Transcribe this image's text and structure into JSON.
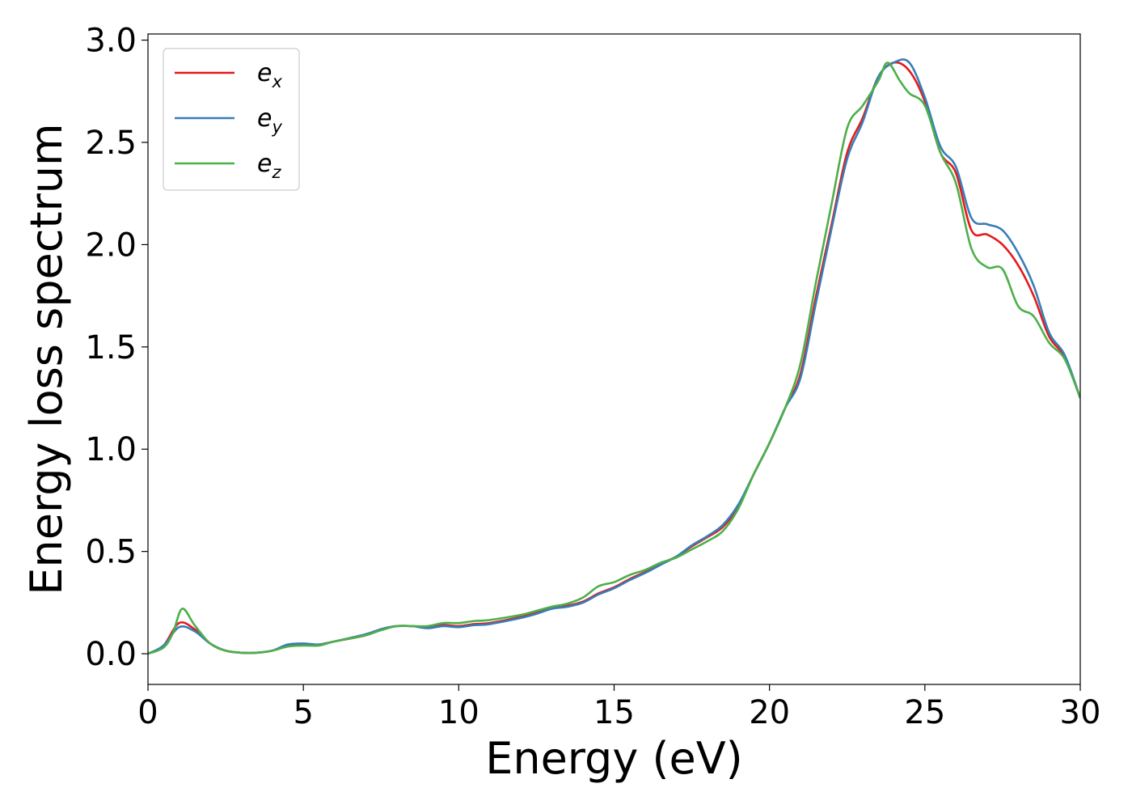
{
  "chart_data": {
    "type": "line",
    "xlabel": "Energy (eV)",
    "ylabel": "Energy loss spectrum",
    "xlim": [
      0,
      30
    ],
    "ylim": [
      -0.15,
      3.03
    ],
    "xticks": [
      0,
      5,
      10,
      15,
      20,
      25,
      30
    ],
    "xtick_labels": [
      "0",
      "5",
      "10",
      "15",
      "20",
      "25",
      "30"
    ],
    "yticks": [
      0.0,
      0.5,
      1.0,
      1.5,
      2.0,
      2.5,
      3.0
    ],
    "ytick_labels": [
      "0.0",
      "0.5",
      "1.0",
      "1.5",
      "2.0",
      "2.5",
      "3.0"
    ],
    "grid": false,
    "legend_position": "top-left",
    "series": [
      {
        "name": "e",
        "subscript": "x",
        "color": "#e41a1c",
        "points": [
          [
            0,
            0
          ],
          [
            0.5,
            0.04
          ],
          [
            1.0,
            0.15
          ],
          [
            1.5,
            0.12
          ],
          [
            2.0,
            0.05
          ],
          [
            2.5,
            0.015
          ],
          [
            3,
            0.005
          ],
          [
            3.5,
            0.005
          ],
          [
            4,
            0.015
          ],
          [
            4.5,
            0.04
          ],
          [
            5,
            0.045
          ],
          [
            5.5,
            0.045
          ],
          [
            6,
            0.06
          ],
          [
            7,
            0.09
          ],
          [
            7.5,
            0.12
          ],
          [
            8,
            0.135
          ],
          [
            8.5,
            0.135
          ],
          [
            9,
            0.13
          ],
          [
            9.5,
            0.14
          ],
          [
            10,
            0.135
          ],
          [
            10.5,
            0.145
          ],
          [
            11,
            0.15
          ],
          [
            12,
            0.18
          ],
          [
            12.5,
            0.2
          ],
          [
            13,
            0.225
          ],
          [
            13.5,
            0.235
          ],
          [
            14,
            0.255
          ],
          [
            14.5,
            0.295
          ],
          [
            15,
            0.325
          ],
          [
            15.5,
            0.365
          ],
          [
            16,
            0.4
          ],
          [
            16.5,
            0.44
          ],
          [
            17,
            0.475
          ],
          [
            17.5,
            0.525
          ],
          [
            18,
            0.57
          ],
          [
            18.5,
            0.62
          ],
          [
            19,
            0.72
          ],
          [
            19.5,
            0.88
          ],
          [
            20,
            1.03
          ],
          [
            20.5,
            1.2
          ],
          [
            21,
            1.37
          ],
          [
            21.5,
            1.75
          ],
          [
            22,
            2.1
          ],
          [
            22.5,
            2.45
          ],
          [
            23,
            2.62
          ],
          [
            23.5,
            2.82
          ],
          [
            24,
            2.89
          ],
          [
            24.5,
            2.85
          ],
          [
            25,
            2.7
          ],
          [
            25.5,
            2.45
          ],
          [
            26,
            2.35
          ],
          [
            26.5,
            2.07
          ],
          [
            27,
            2.05
          ],
          [
            27.5,
            2.0
          ],
          [
            28,
            1.9
          ],
          [
            28.5,
            1.75
          ],
          [
            29,
            1.55
          ],
          [
            29.5,
            1.45
          ],
          [
            30,
            1.25
          ]
        ]
      },
      {
        "name": "e",
        "subscript": "y",
        "color": "#377eb8",
        "points": [
          [
            0,
            0
          ],
          [
            0.5,
            0.04
          ],
          [
            1.0,
            0.13
          ],
          [
            1.5,
            0.11
          ],
          [
            2.0,
            0.05
          ],
          [
            2.5,
            0.015
          ],
          [
            3,
            0.005
          ],
          [
            3.5,
            0.005
          ],
          [
            4,
            0.015
          ],
          [
            4.5,
            0.045
          ],
          [
            5,
            0.05
          ],
          [
            5.5,
            0.045
          ],
          [
            6,
            0.06
          ],
          [
            7,
            0.095
          ],
          [
            7.5,
            0.12
          ],
          [
            8,
            0.135
          ],
          [
            8.5,
            0.135
          ],
          [
            9,
            0.125
          ],
          [
            9.5,
            0.135
          ],
          [
            10,
            0.13
          ],
          [
            10.5,
            0.14
          ],
          [
            11,
            0.145
          ],
          [
            12,
            0.175
          ],
          [
            12.5,
            0.195
          ],
          [
            13,
            0.22
          ],
          [
            13.5,
            0.23
          ],
          [
            14,
            0.25
          ],
          [
            14.5,
            0.29
          ],
          [
            15,
            0.32
          ],
          [
            15.5,
            0.36
          ],
          [
            16,
            0.395
          ],
          [
            16.5,
            0.435
          ],
          [
            17,
            0.475
          ],
          [
            17.5,
            0.53
          ],
          [
            18,
            0.575
          ],
          [
            18.5,
            0.63
          ],
          [
            19,
            0.73
          ],
          [
            19.5,
            0.88
          ],
          [
            20,
            1.03
          ],
          [
            20.5,
            1.2
          ],
          [
            21,
            1.35
          ],
          [
            21.5,
            1.72
          ],
          [
            22,
            2.08
          ],
          [
            22.5,
            2.42
          ],
          [
            23,
            2.6
          ],
          [
            23.5,
            2.82
          ],
          [
            24,
            2.89
          ],
          [
            24.5,
            2.89
          ],
          [
            25,
            2.72
          ],
          [
            25.5,
            2.48
          ],
          [
            26,
            2.38
          ],
          [
            26.5,
            2.13
          ],
          [
            27,
            2.1
          ],
          [
            27.5,
            2.07
          ],
          [
            28,
            1.96
          ],
          [
            28.5,
            1.8
          ],
          [
            29,
            1.57
          ],
          [
            29.5,
            1.46
          ],
          [
            30,
            1.25
          ]
        ]
      },
      {
        "name": "e",
        "subscript": "z",
        "color": "#4daf4a",
        "points": [
          [
            0,
            0
          ],
          [
            0.5,
            0.03
          ],
          [
            0.8,
            0.1
          ],
          [
            1.1,
            0.22
          ],
          [
            1.5,
            0.14
          ],
          [
            2.0,
            0.05
          ],
          [
            2.5,
            0.015
          ],
          [
            3,
            0.005
          ],
          [
            3.5,
            0.005
          ],
          [
            4,
            0.015
          ],
          [
            4.5,
            0.035
          ],
          [
            5,
            0.04
          ],
          [
            5.5,
            0.04
          ],
          [
            6,
            0.06
          ],
          [
            7,
            0.09
          ],
          [
            7.5,
            0.115
          ],
          [
            8,
            0.135
          ],
          [
            8.5,
            0.135
          ],
          [
            9,
            0.135
          ],
          [
            9.5,
            0.15
          ],
          [
            10,
            0.15
          ],
          [
            10.5,
            0.16
          ],
          [
            11,
            0.165
          ],
          [
            12,
            0.19
          ],
          [
            12.5,
            0.21
          ],
          [
            13,
            0.23
          ],
          [
            13.5,
            0.245
          ],
          [
            14,
            0.275
          ],
          [
            14.5,
            0.33
          ],
          [
            15,
            0.35
          ],
          [
            15.5,
            0.385
          ],
          [
            16,
            0.41
          ],
          [
            16.5,
            0.445
          ],
          [
            17,
            0.47
          ],
          [
            17.5,
            0.51
          ],
          [
            18,
            0.55
          ],
          [
            18.5,
            0.6
          ],
          [
            19,
            0.71
          ],
          [
            19.5,
            0.88
          ],
          [
            20,
            1.03
          ],
          [
            20.5,
            1.2
          ],
          [
            21,
            1.42
          ],
          [
            21.5,
            1.82
          ],
          [
            22,
            2.2
          ],
          [
            22.5,
            2.57
          ],
          [
            23,
            2.68
          ],
          [
            23.5,
            2.8
          ],
          [
            23.8,
            2.89
          ],
          [
            24.2,
            2.8
          ],
          [
            24.5,
            2.74
          ],
          [
            25,
            2.68
          ],
          [
            25.5,
            2.45
          ],
          [
            26,
            2.3
          ],
          [
            26.5,
            1.98
          ],
          [
            27,
            1.89
          ],
          [
            27.5,
            1.88
          ],
          [
            28,
            1.7
          ],
          [
            28.5,
            1.65
          ],
          [
            29,
            1.52
          ],
          [
            29.5,
            1.44
          ],
          [
            30,
            1.25
          ]
        ]
      }
    ]
  }
}
